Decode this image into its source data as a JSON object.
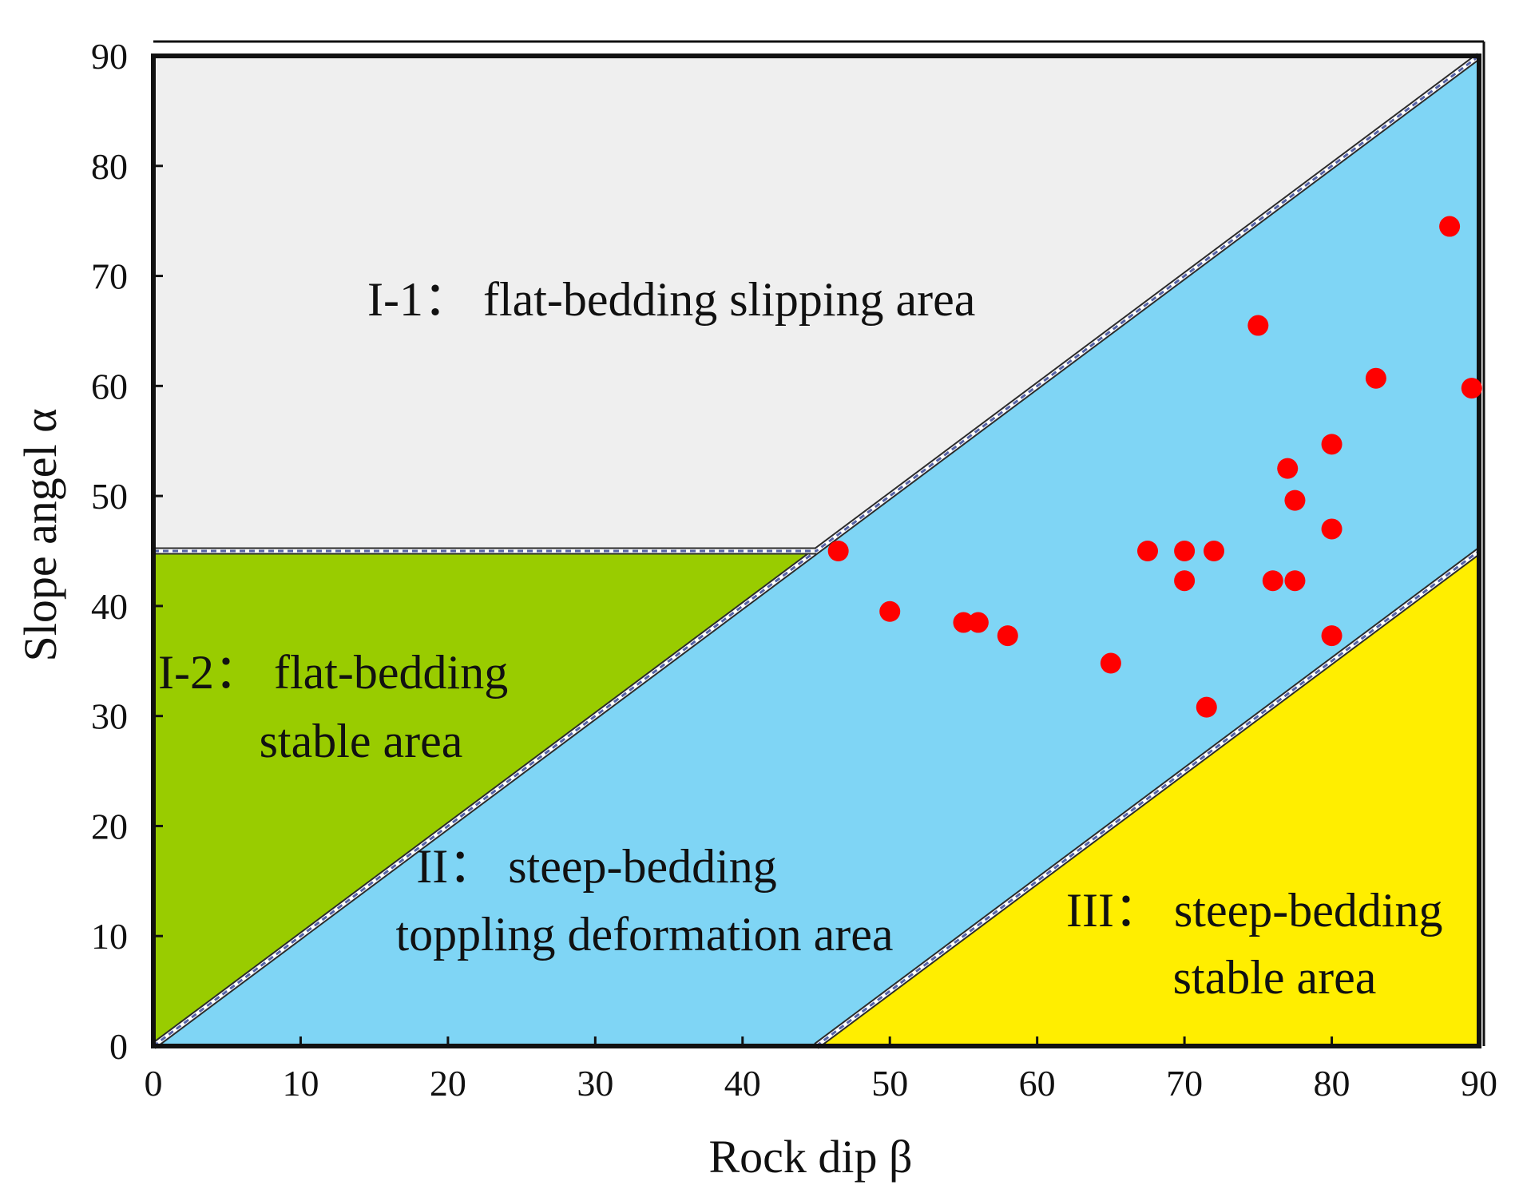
{
  "chart_data": {
    "type": "scatter",
    "xlabel": "Rock dip β",
    "ylabel": "Slope angel α",
    "xlim": [
      0,
      90
    ],
    "ylim": [
      0,
      90
    ],
    "x_ticks": [
      "0",
      "10",
      "20",
      "30",
      "40",
      "50",
      "60",
      "70",
      "80",
      "90"
    ],
    "y_ticks": [
      "0",
      "10",
      "20",
      "30",
      "40",
      "50",
      "60",
      "70",
      "80",
      "90"
    ],
    "grid": false,
    "legend": "none",
    "regions": [
      {
        "id": "I-1",
        "color": "#efefef",
        "polygon": [
          [
            0,
            45
          ],
          [
            45,
            45
          ],
          [
            90,
            90
          ],
          [
            0,
            90
          ]
        ],
        "label_lines": [
          "I-1： flat-bedding slipping area"
        ]
      },
      {
        "id": "I-2",
        "color": "#99cc00",
        "polygon": [
          [
            0,
            0
          ],
          [
            45,
            45
          ],
          [
            0,
            45
          ]
        ],
        "label_lines": [
          "I-2： flat-bedding",
          "stable area"
        ]
      },
      {
        "id": "II",
        "color": "#7fd5f5",
        "polygon": [
          [
            0,
            0
          ],
          [
            45,
            0
          ],
          [
            90,
            45
          ],
          [
            90,
            90
          ]
        ],
        "label_lines": [
          "II： steep-bedding",
          "toppling deformation area"
        ]
      },
      {
        "id": "III",
        "color": "#ffee00",
        "polygon": [
          [
            45,
            0
          ],
          [
            90,
            0
          ],
          [
            90,
            45
          ]
        ],
        "label_lines": [
          "III： steep-bedding",
          "stable area"
        ]
      }
    ],
    "points_color": "#ff0000",
    "points": [
      [
        46.5,
        45
      ],
      [
        50,
        39.5
      ],
      [
        55,
        38.5
      ],
      [
        56,
        38.5
      ],
      [
        58,
        37.3
      ],
      [
        65,
        34.8
      ],
      [
        67.5,
        45
      ],
      [
        70,
        45
      ],
      [
        70,
        42.3
      ],
      [
        71.5,
        30.8
      ],
      [
        72,
        45
      ],
      [
        75,
        65.5
      ],
      [
        76,
        42.3
      ],
      [
        77,
        52.5
      ],
      [
        77.5,
        49.6
      ],
      [
        77.5,
        42.3
      ],
      [
        80,
        54.7
      ],
      [
        80,
        47
      ],
      [
        80,
        37.3
      ],
      [
        83,
        60.7
      ],
      [
        88,
        74.5
      ],
      [
        89.5,
        59.8
      ]
    ]
  }
}
